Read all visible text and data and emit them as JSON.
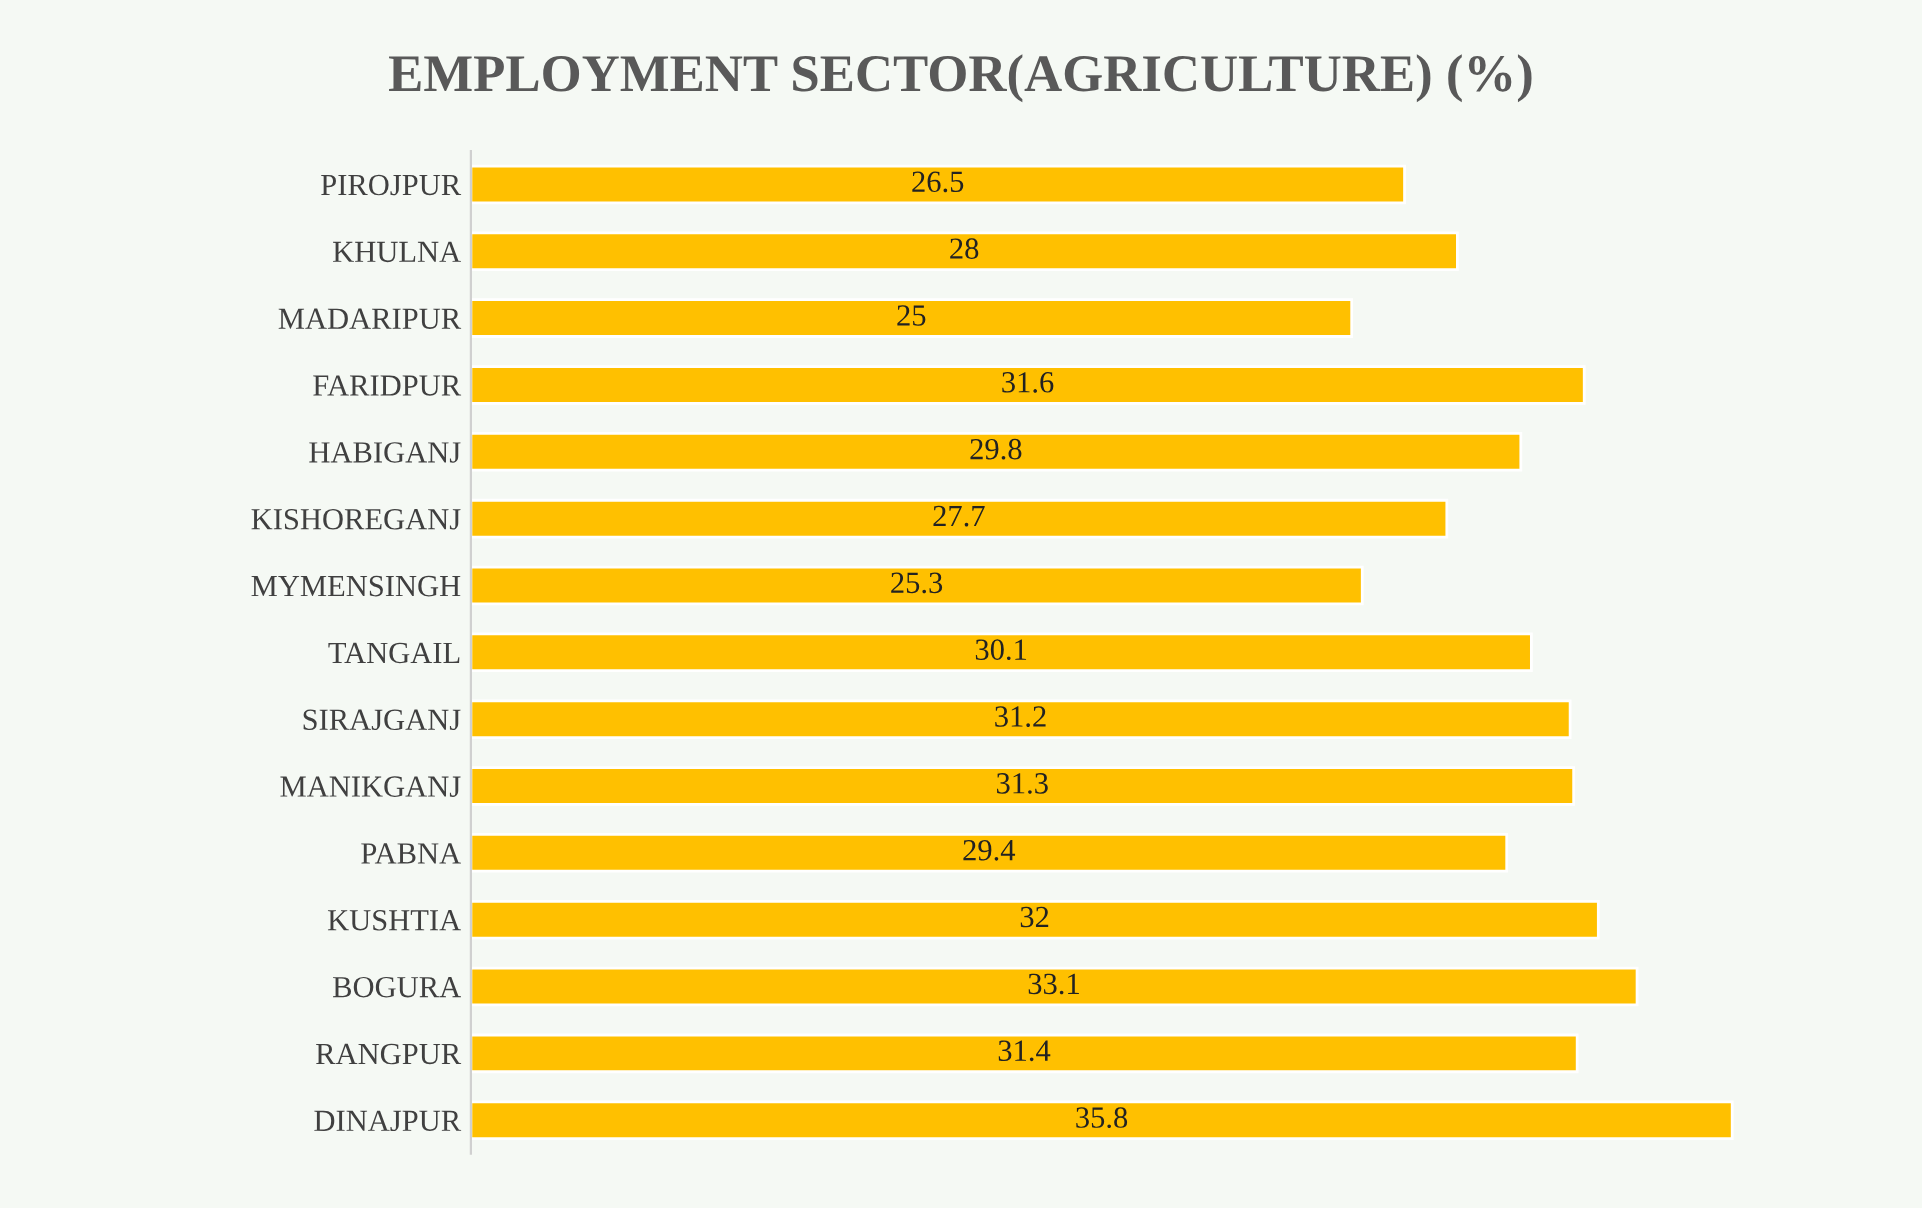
{
  "chart_data": {
    "type": "bar",
    "orientation": "horizontal",
    "title": "EMPLOYMENT SECTOR(AGRICULTURE) (%)",
    "categories": [
      "PIROJPUR",
      "KHULNA",
      "MADARIPUR",
      "FARIDPUR",
      "HABIGANJ",
      "KISHOREGANJ",
      "MYMENSINGH",
      "TANGAIL",
      "SIRAJGANJ",
      "MANIKGANJ",
      "PABNA",
      "KUSHTIA",
      "BOGURA",
      "RANGPUR",
      "DINAJPUR"
    ],
    "values": [
      26.5,
      28,
      25,
      31.6,
      29.8,
      27.7,
      25.3,
      30.1,
      31.2,
      31.3,
      29.4,
      32,
      33.1,
      31.4,
      35.8
    ],
    "color": "#ffc000",
    "tick_labels": "y",
    "data_labels": true
  }
}
